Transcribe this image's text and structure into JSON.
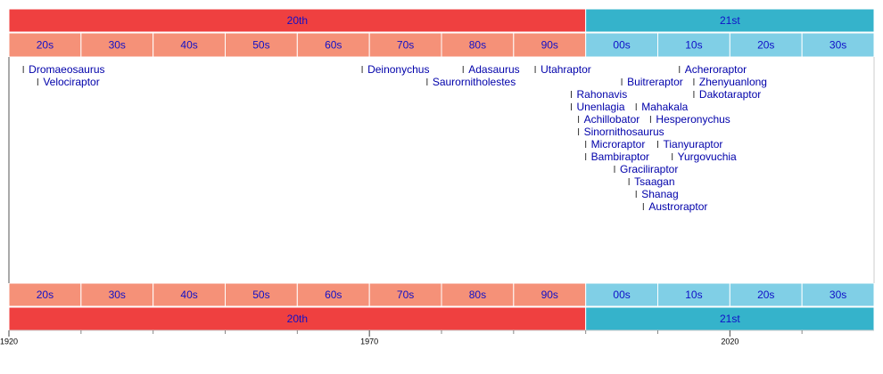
{
  "chart_data": {
    "type": "timeline",
    "xlim": [
      1920,
      2040
    ],
    "xticks": [
      1920,
      1970,
      2020
    ],
    "minor_xticks": [
      1930,
      1940,
      1950,
      1960,
      1980,
      1990,
      2000,
      2010,
      2030
    ],
    "centuries": [
      {
        "label": "20th",
        "start": 1920,
        "end": 2000,
        "color": "#ef4040"
      },
      {
        "label": "21st",
        "start": 2000,
        "end": 2040,
        "color": "#35b3cb"
      }
    ],
    "decades": [
      {
        "label": "20s",
        "start": 1920,
        "end": 1930,
        "color": "#f59178"
      },
      {
        "label": "30s",
        "start": 1930,
        "end": 1940,
        "color": "#f59178"
      },
      {
        "label": "40s",
        "start": 1940,
        "end": 1950,
        "color": "#f59178"
      },
      {
        "label": "50s",
        "start": 1950,
        "end": 1960,
        "color": "#f59178"
      },
      {
        "label": "60s",
        "start": 1960,
        "end": 1970,
        "color": "#f59178"
      },
      {
        "label": "70s",
        "start": 1970,
        "end": 1980,
        "color": "#f59178"
      },
      {
        "label": "80s",
        "start": 1980,
        "end": 1990,
        "color": "#f59178"
      },
      {
        "label": "90s",
        "start": 1990,
        "end": 2000,
        "color": "#f59178"
      },
      {
        "label": "00s",
        "start": 2000,
        "end": 2010,
        "color": "#80cfe6"
      },
      {
        "label": "10s",
        "start": 2010,
        "end": 2020,
        "color": "#80cfe6"
      },
      {
        "label": "20s",
        "start": 2020,
        "end": 2030,
        "color": "#80cfe6"
      },
      {
        "label": "30s",
        "start": 2030,
        "end": 2040,
        "color": "#80cfe6"
      }
    ],
    "events": [
      {
        "name": "Dromaeosaurus",
        "year": 1922
      },
      {
        "name": "Velociraptor",
        "year": 1924
      },
      {
        "name": "Deinonychus",
        "year": 1969
      },
      {
        "name": "Utahraptor",
        "year": 1993
      },
      {
        "name": "Acheroraptor",
        "year": 2013
      },
      {
        "name": "Buitreraptor",
        "year": 2005
      },
      {
        "name": "Adasaurus",
        "year": 1983
      },
      {
        "name": "Rahonavis",
        "year": 1998
      },
      {
        "name": "Saurornitholestes",
        "year": 1978
      },
      {
        "name": "Unenlagia",
        "year": 1998
      },
      {
        "name": "Achillobator",
        "year": 1999
      },
      {
        "name": "Zhenyuanlong",
        "year": 2015
      },
      {
        "name": "Sinornithosaurus",
        "year": 1999
      },
      {
        "name": "Dakotaraptor",
        "year": 2015
      },
      {
        "name": "Microraptor",
        "year": 2000
      },
      {
        "name": "Bambiraptor",
        "year": 2000
      },
      {
        "name": "Graciliraptor",
        "year": 2004
      },
      {
        "name": "Tsaagan",
        "year": 2006
      },
      {
        "name": "Mahakala",
        "year": 2007
      },
      {
        "name": "Shanag",
        "year": 2007
      },
      {
        "name": "Austroraptor",
        "year": 2008
      },
      {
        "name": "Hesperonychus",
        "year": 2009
      },
      {
        "name": "Tianyuraptor",
        "year": 2010
      },
      {
        "name": "Yurgovuchia",
        "year": 2012
      }
    ]
  }
}
